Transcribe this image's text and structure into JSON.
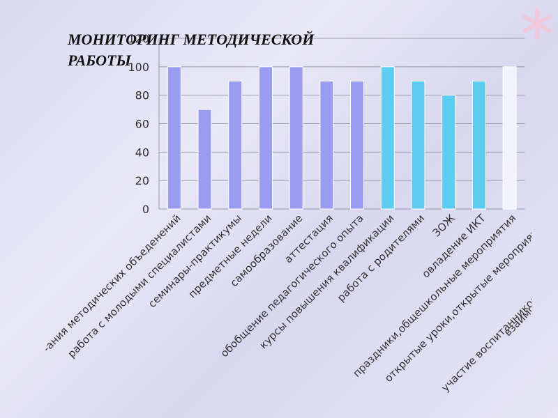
{
  "chart_data": {
    "type": "bar",
    "title": "МОНИТОРИНГ МЕТОДИЧЕСКОЙ РАБОТЫ",
    "categories": [
      "-ания методических объеденений",
      "работа с молодыми специалистами",
      "семинары-практикумы",
      "предметные недели",
      "самообразование",
      "аттестация",
      "обобщение педагогического опыта",
      "курсы повышения квалификации",
      "работа с родителями",
      "ЗОЖ",
      "овладение ИКТ",
      "праздники,общешкольные мероприятия",
      "открытые уроки,открытые мероприят",
      "взаимопо",
      "участие воспитанников"
    ],
    "values": [
      100,
      70,
      90,
      100,
      100,
      90,
      90,
      100,
      90,
      80,
      90,
      100,
      null,
      null,
      null
    ],
    "colors": [
      "#9a9cf0",
      "#9a9cf0",
      "#9a9cf0",
      "#9a9cf0",
      "#9a9cf0",
      "#9a9cf0",
      "#9a9cf0",
      "#5ccdf0",
      "#5ccdf0",
      "#5ccdf0",
      "#5ccdf0",
      "#f2f2fc",
      null,
      null,
      null
    ],
    "ylim": [
      0,
      120
    ],
    "yticks": [
      0,
      20,
      40,
      60,
      80,
      100,
      120
    ],
    "grid": true
  }
}
